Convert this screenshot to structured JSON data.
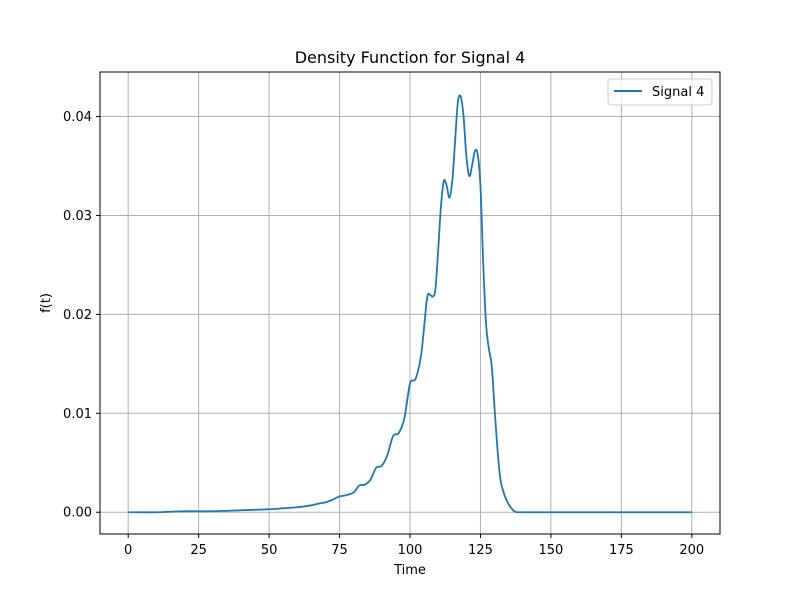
{
  "chart_data": {
    "type": "line",
    "title": "Density Function for Signal 4",
    "xlabel": "Time",
    "ylabel": "f(t)",
    "xlim": [
      -10,
      210
    ],
    "ylim": [
      -0.0022,
      0.0445
    ],
    "xticks": [
      0,
      25,
      50,
      75,
      100,
      125,
      150,
      175,
      200
    ],
    "yticks": [
      0.0,
      0.01,
      0.02,
      0.03,
      0.04
    ],
    "xtick_labels": [
      "0",
      "25",
      "50",
      "75",
      "100",
      "125",
      "150",
      "175",
      "200"
    ],
    "ytick_labels": [
      "0.00",
      "0.01",
      "0.02",
      "0.03",
      "0.04"
    ],
    "grid": true,
    "legend_position": "top-right",
    "colors": {
      "line": "#1f77b4",
      "grid": "#b0b0b0",
      "axes": "#000000"
    },
    "series": [
      {
        "name": "Signal 4",
        "x": [
          0,
          10,
          20,
          30,
          40,
          50,
          55,
          60,
          65,
          68,
          70,
          72,
          75,
          77,
          80,
          82,
          84,
          86,
          88,
          90,
          92,
          94,
          96,
          98,
          100,
          102,
          104,
          106,
          107,
          108,
          109,
          110,
          111,
          112,
          113,
          114,
          115,
          116,
          117,
          118,
          119,
          120,
          121,
          122,
          123,
          124,
          125,
          126,
          127,
          128,
          129,
          130,
          131,
          132,
          133,
          134,
          135,
          136,
          137,
          138,
          139,
          140,
          145,
          150,
          175,
          200
        ],
        "y": [
          0.0,
          0.0,
          0.0001,
          0.0001,
          0.0002,
          0.0003,
          0.0004,
          0.0005,
          0.0007,
          0.0009,
          0.001,
          0.0012,
          0.0016,
          0.0017,
          0.002,
          0.0027,
          0.0028,
          0.0033,
          0.0045,
          0.0047,
          0.0058,
          0.0077,
          0.008,
          0.0095,
          0.013,
          0.0135,
          0.016,
          0.0215,
          0.022,
          0.0218,
          0.0225,
          0.0265,
          0.031,
          0.0335,
          0.033,
          0.0318,
          0.0335,
          0.0375,
          0.0415,
          0.042,
          0.04,
          0.036,
          0.034,
          0.035,
          0.0365,
          0.0362,
          0.033,
          0.025,
          0.019,
          0.0165,
          0.0148,
          0.0105,
          0.0065,
          0.0035,
          0.0022,
          0.0014,
          0.0008,
          0.0004,
          0.0001,
          0.0,
          0.0,
          0.0,
          0.0,
          0.0,
          0.0,
          0.0
        ]
      }
    ]
  }
}
